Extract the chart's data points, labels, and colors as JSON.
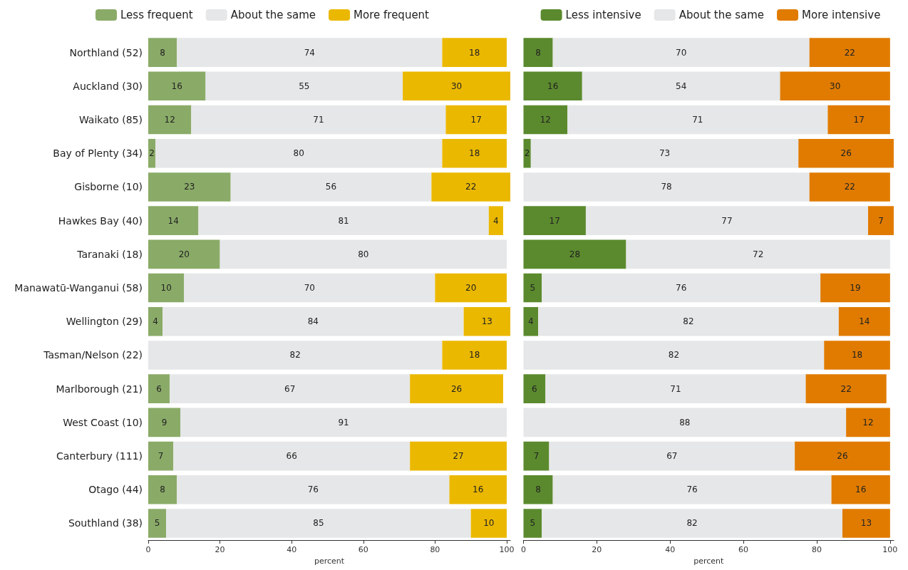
{
  "chart_data": [
    {
      "type": "bar",
      "orientation": "horizontal",
      "stacked": true,
      "data_labels": true,
      "grid": false,
      "legend": "top",
      "xlabel": "percent",
      "xlim": [
        0,
        101
      ],
      "xticks": [
        0,
        20,
        40,
        60,
        80,
        100
      ],
      "categories": [
        "Northland (52)",
        "Auckland (30)",
        "Waikato (85)",
        "Bay of Plenty (34)",
        "Gisborne (10)",
        "Hawkes Bay (40)",
        "Taranaki (18)",
        "Manawatū-Wanganui (58)",
        "Wellington (29)",
        "Tasman/Nelson (22)",
        "Marlborough (21)",
        "West Coast (10)",
        "Canterbury (111)",
        "Otago (44)",
        "Southland (38)"
      ],
      "series": [
        {
          "name": "Less frequent",
          "color": "#8aab68",
          "values": [
            8,
            16,
            12,
            2,
            23,
            14,
            20,
            10,
            4,
            null,
            6,
            9,
            7,
            8,
            5
          ]
        },
        {
          "name": "About the same",
          "color": "#e6e7e8",
          "values": [
            74,
            55,
            71,
            80,
            56,
            81,
            80,
            70,
            84,
            82,
            67,
            91,
            66,
            76,
            85
          ]
        },
        {
          "name": "More frequent",
          "color": "#ebb800",
          "values": [
            18,
            30,
            17,
            18,
            22,
            4,
            null,
            20,
            13,
            18,
            26,
            null,
            27,
            16,
            10
          ]
        }
      ]
    },
    {
      "type": "bar",
      "orientation": "horizontal",
      "stacked": true,
      "data_labels": true,
      "grid": false,
      "legend": "top",
      "xlabel": "percent",
      "xlim": [
        0,
        101
      ],
      "xticks": [
        0,
        20,
        40,
        60,
        80,
        100
      ],
      "tick_labels": "x",
      "categories": [
        null,
        null,
        null,
        null,
        null,
        null,
        null,
        null,
        null,
        null,
        null,
        null,
        null,
        null,
        null
      ],
      "series": [
        {
          "name": "Less intensive",
          "color": "#5b8a2e",
          "values": [
            8,
            16,
            12,
            2,
            null,
            17,
            28,
            5,
            4,
            null,
            6,
            null,
            7,
            8,
            5
          ]
        },
        {
          "name": "About the same",
          "color": "#e6e7e8",
          "values": [
            70,
            54,
            71,
            73,
            78,
            77,
            72,
            76,
            82,
            82,
            71,
            88,
            67,
            76,
            82
          ]
        },
        {
          "name": "More intensive",
          "color": "#e07b00",
          "values": [
            22,
            30,
            17,
            26,
            22,
            7,
            null,
            19,
            14,
            18,
            22,
            12,
            26,
            16,
            13
          ]
        }
      ]
    }
  ]
}
